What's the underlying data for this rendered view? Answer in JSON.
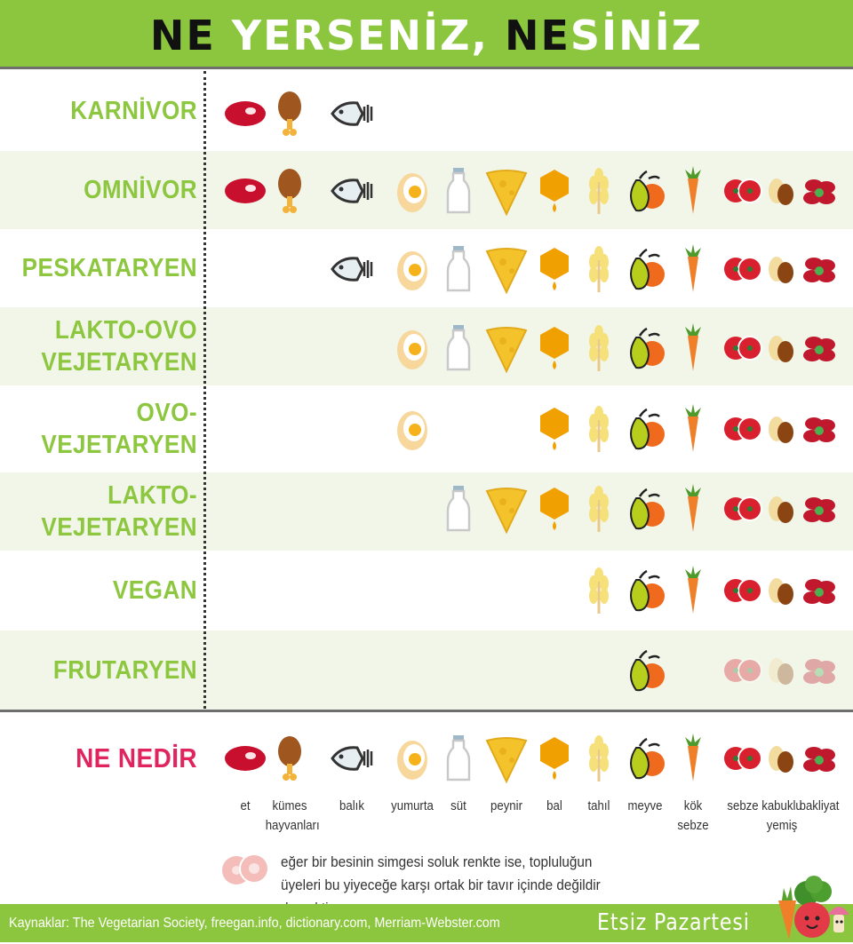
{
  "title": {
    "part1": "NE",
    "part2": " YERSENİZ, ",
    "part3": "NE",
    "part4": "SİNİZ"
  },
  "diets": [
    {
      "label": "KARNİVOR",
      "foods": [
        "meat",
        "poultry",
        "fish"
      ],
      "faded": []
    },
    {
      "label": "OMNİVOR",
      "foods": [
        "meat",
        "poultry",
        "fish",
        "egg",
        "milk",
        "cheese",
        "honey",
        "grain",
        "fruit",
        "root",
        "veg",
        "nut",
        "legume"
      ],
      "faded": []
    },
    {
      "label": "PESKATARYEN",
      "foods": [
        "fish",
        "egg",
        "milk",
        "cheese",
        "honey",
        "grain",
        "fruit",
        "root",
        "veg",
        "nut",
        "legume"
      ],
      "faded": []
    },
    {
      "label": "LAKTO-OVO\nVEJETARYEN",
      "foods": [
        "egg",
        "milk",
        "cheese",
        "honey",
        "grain",
        "fruit",
        "root",
        "veg",
        "nut",
        "legume"
      ],
      "faded": []
    },
    {
      "label": "OVO-VEJETARYEN",
      "foods": [
        "egg",
        "honey",
        "grain",
        "fruit",
        "root",
        "veg",
        "nut",
        "legume"
      ],
      "faded": []
    },
    {
      "label": "LAKTO-VEJETARYEN",
      "foods": [
        "milk",
        "cheese",
        "honey",
        "grain",
        "fruit",
        "root",
        "veg",
        "nut",
        "legume"
      ],
      "faded": []
    },
    {
      "label": "VEGAN",
      "foods": [
        "grain",
        "fruit",
        "root",
        "veg",
        "nut",
        "legume"
      ],
      "faded": []
    },
    {
      "label": "FRUTARYEN",
      "foods": [
        "fruit",
        "veg",
        "nut",
        "legume"
      ],
      "faded": [
        "veg",
        "nut",
        "legume"
      ]
    }
  ],
  "legend": {
    "title": "NE NEDİR",
    "items": [
      {
        "key": "meat",
        "label": "et"
      },
      {
        "key": "poultry",
        "label": "kümes\nhayvanları"
      },
      {
        "key": "fish",
        "label": "balık"
      },
      {
        "key": "egg",
        "label": "yumurta"
      },
      {
        "key": "milk",
        "label": "süt"
      },
      {
        "key": "cheese",
        "label": "peynir"
      },
      {
        "key": "honey",
        "label": "bal"
      },
      {
        "key": "grain",
        "label": "tahıl"
      },
      {
        "key": "fruit",
        "label": "meyve"
      },
      {
        "key": "root",
        "label": "kök\nsebze"
      },
      {
        "key": "veg",
        "label": "sebze"
      },
      {
        "key": "nut",
        "label": "kabuklu\nyemiş"
      },
      {
        "key": "legume",
        "label": "bakliyat"
      }
    ]
  },
  "note": "eğer bir besinin simgesi soluk renkte ise, topluluğun üyeleri bu yiyeceğe karşı ortak bir tavır içinde değildir demektir.",
  "footer": {
    "sources": "Kaynaklar: The Vegetarian Society, freegan.info, dictionary.com, Merriam-Webster.com",
    "brand": "Etsiz Pazartesi"
  },
  "colors": {
    "green": "#8cc63f",
    "label_green": "#8dc63f",
    "what_red": "#e0245e",
    "alt_row": "#f1f6e9"
  }
}
